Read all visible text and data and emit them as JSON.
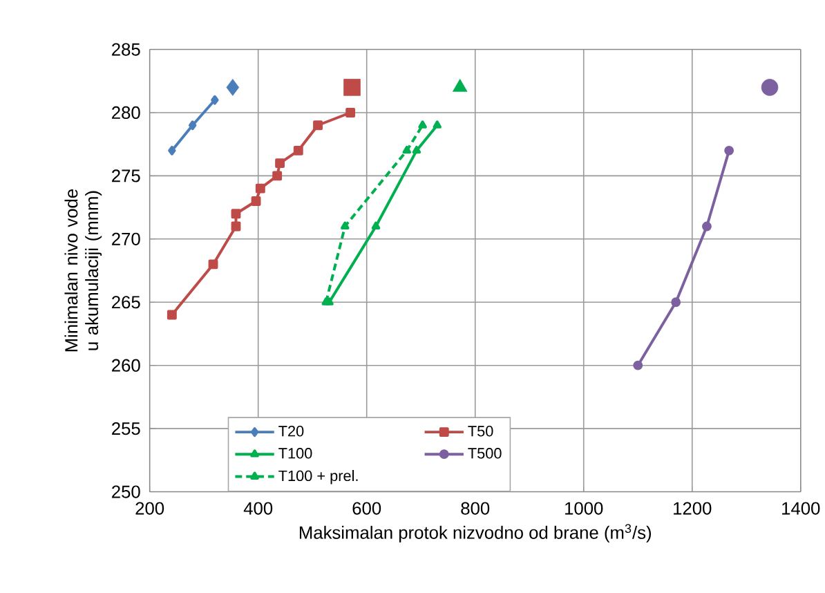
{
  "chart_data": {
    "type": "line",
    "xlabel": "Maksimalan protok nizvodno od brane (m$^{3}$/s)",
    "ylabel": "Minimalan nivo vode u akumulaciji (mnm)",
    "xlim": [
      200,
      1400
    ],
    "xticks": [
      200,
      400,
      600,
      800,
      1000,
      1200,
      1400
    ],
    "ylim": [
      250,
      285
    ],
    "yticks": [
      250,
      255,
      260,
      265,
      270,
      275,
      280,
      285
    ],
    "grid": true,
    "legend": "bottom left",
    "series": [
      {
        "name": "T20",
        "color": "#4a7ebb",
        "marker": "diamond",
        "x": [
          241,
          279,
          320
        ],
        "values": [
          277,
          279,
          281
        ]
      },
      {
        "name": "T50",
        "color": "#be4b48",
        "marker": "square",
        "x": [
          241,
          317,
          359,
          359,
          396,
          404,
          435,
          440,
          474,
          510,
          570
        ],
        "values": [
          264,
          268,
          271,
          272,
          273,
          274,
          275,
          276,
          277,
          279,
          280
        ]
      },
      {
        "name": "T100",
        "color": "#00b050",
        "marker": "triangle",
        "x": [
          531,
          617,
          692,
          730
        ],
        "values": [
          265,
          271,
          277,
          279
        ]
      },
      {
        "name": "T500",
        "color": "#7d60a0",
        "marker": "circle",
        "x": [
          1100,
          1170,
          1227,
          1268
        ],
        "values": [
          260,
          265,
          271,
          277
        ]
      },
      {
        "name": "T100 + prel.",
        "color": "#00b050",
        "marker": "triangle",
        "line_style": "dashed",
        "x": [
          525,
          560,
          674,
          703
        ],
        "values": [
          265,
          271,
          277,
          279
        ]
      },
      {
        "type": "scatter",
        "color": "#4a7ebb",
        "marker": "diamond",
        "x": [
          353
        ],
        "values": [
          282
        ]
      },
      {
        "type": "scatter",
        "color": "#be4b48",
        "marker": "square",
        "x": [
          573
        ],
        "values": [
          282
        ]
      },
      {
        "type": "scatter",
        "color": "#00b050",
        "marker": "triangle",
        "x": [
          772
        ],
        "values": [
          282
        ]
      },
      {
        "type": "scatter",
        "color": "#7d60a0",
        "marker": "circle",
        "x": [
          1343
        ],
        "values": [
          282
        ]
      }
    ]
  }
}
